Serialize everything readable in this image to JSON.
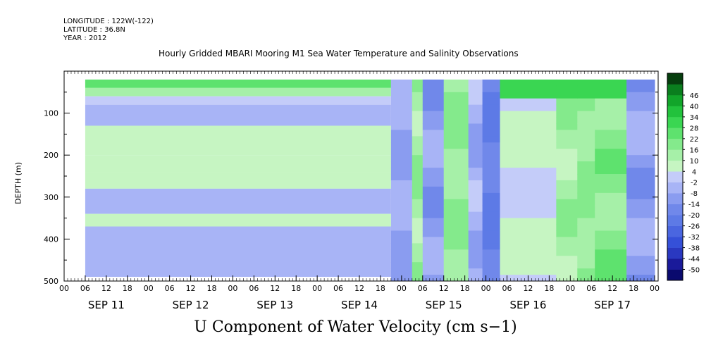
{
  "header": {
    "longitude": "LONGITUDE : 122W(-122)",
    "latitude": "LATITUDE : 36.8N",
    "year": "YEAR : 2012"
  },
  "chart_data": {
    "type": "heatmap",
    "title": "Hourly Gridded MBARI Mooring M1 Sea Water Temperature and Salinity Observations",
    "main_title": "U Component of Water Velocity (cm s−1)",
    "ylabel": "DEPTH (m)",
    "y_range": [
      500,
      0
    ],
    "y_ticks": [
      100,
      200,
      300,
      400,
      500
    ],
    "x_hour_ticks": [
      "00",
      "06",
      "12",
      "18",
      "00",
      "06",
      "12",
      "18",
      "00",
      "06",
      "12",
      "18",
      "00",
      "06",
      "12",
      "18",
      "00",
      "06",
      "12",
      "18",
      "00",
      "06",
      "12",
      "18",
      "00",
      "06",
      "12",
      "18",
      "00"
    ],
    "x_day_labels": [
      "SEP 11",
      "SEP 12",
      "SEP 13",
      "SEP 14",
      "SEP 15",
      "SEP 16",
      "SEP 17"
    ],
    "x_range_hours": [
      0,
      169
    ],
    "colorbar": {
      "levels": [
        -50,
        -44,
        -38,
        -32,
        -26,
        -20,
        -14,
        -8,
        -2,
        4,
        10,
        16,
        22,
        28,
        34,
        40,
        46
      ],
      "colors": [
        "#0a0a6e",
        "#1a1a9a",
        "#2a38c0",
        "#3550d8",
        "#4a66e0",
        "#5d7ae6",
        "#7088ea",
        "#8a9cf0",
        "#a8b4f6",
        "#c4ccf9",
        "#c6f5c2",
        "#a6f0a8",
        "#84ea8c",
        "#5ee26e",
        "#3ad652",
        "#22c23c",
        "#12a52a",
        "#0a7e1e",
        "#063e0e"
      ]
    },
    "bands_early": {
      "note": "nearly uniform horizontal bands from SEP 11 06 to SEP 15 03",
      "depth_values": [
        [
          20,
          40,
          26
        ],
        [
          40,
          60,
          10
        ],
        [
          60,
          80,
          2
        ],
        [
          80,
          130,
          -6
        ],
        [
          130,
          200,
          6
        ],
        [
          200,
          240,
          8
        ],
        [
          240,
          280,
          4
        ],
        [
          280,
          340,
          -6
        ],
        [
          340,
          370,
          6
        ],
        [
          370,
          490,
          -8
        ]
      ]
    },
    "late_pattern": {
      "note": "variable, vertical streaks SEP 15 03 to SEP 17 22",
      "columns": [
        {
          "from": 93,
          "to": 99,
          "value": -8
        },
        {
          "from": 99,
          "to": 102,
          "value": 14
        },
        {
          "from": 102,
          "to": 108,
          "value": -10
        },
        {
          "from": 108,
          "to": 115,
          "value": 16
        },
        {
          "from": 115,
          "to": 119,
          "value": -6
        },
        {
          "from": 119,
          "to": 124,
          "value": -20
        },
        {
          "from": 124,
          "to": 140,
          "value": 4
        },
        {
          "from": 140,
          "to": 146,
          "value": 14
        },
        {
          "from": 146,
          "to": 151,
          "value": 16
        },
        {
          "from": 151,
          "to": 160,
          "value": 18
        },
        {
          "from": 160,
          "to": 168,
          "value": -10
        }
      ]
    }
  },
  "colors": {
    "frame": "#000000",
    "background": "#ffffff"
  }
}
